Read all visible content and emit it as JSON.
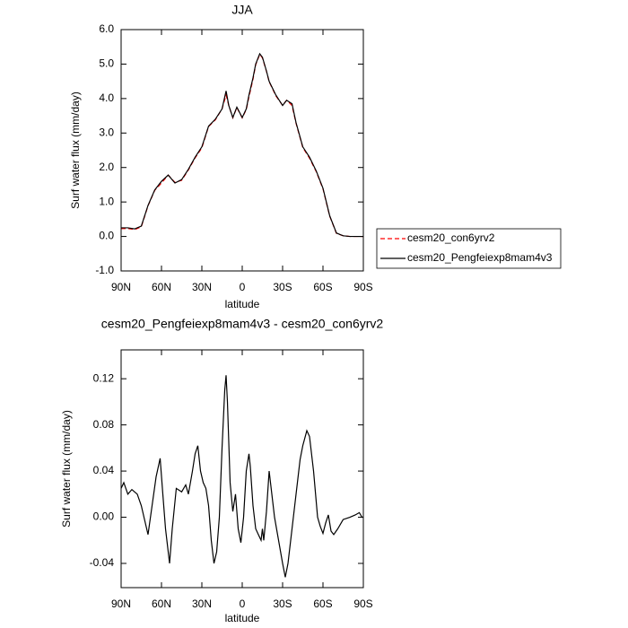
{
  "chart_data": [
    {
      "type": "line",
      "title": "JJA",
      "x_label": "latitude",
      "y_label": "Surf water flux (mm/day)",
      "legend": "right",
      "xlim": [
        90,
        -90
      ],
      "xticks": [
        {
          "value": 90,
          "label": "90N"
        },
        {
          "value": 60,
          "label": "60N"
        },
        {
          "value": 30,
          "label": "30N"
        },
        0,
        {
          "value": -30,
          "label": "30S"
        },
        {
          "value": -60,
          "label": "60S"
        },
        {
          "value": -90,
          "label": "90S"
        }
      ],
      "ylim": [
        -1,
        6
      ],
      "yticks": [
        {
          "value": -1,
          "label": "-1.0"
        },
        {
          "value": 0,
          "label": "0.0"
        },
        {
          "value": 1,
          "label": "1.0"
        },
        {
          "value": 2,
          "label": "2.0"
        },
        {
          "value": 3,
          "label": "3.0"
        },
        {
          "value": 4,
          "label": "4.0"
        },
        {
          "value": 5,
          "label": "5.0"
        },
        {
          "value": 6,
          "label": "6.0"
        }
      ],
      "x": [
        90,
        85,
        80,
        75,
        70,
        65,
        60,
        55,
        50,
        45,
        40,
        35,
        30,
        25,
        20,
        15,
        12,
        10,
        7,
        4,
        0,
        -3,
        -5,
        -8,
        -10,
        -13,
        -15,
        -18,
        -20,
        -25,
        -30,
        -33,
        -37,
        -40,
        -45,
        -50,
        -55,
        -60,
        -65,
        -70,
        -75,
        -80,
        -85,
        -90
      ],
      "series": [
        {
          "name": "cesm20_con6yrv2",
          "color": "#ff0000",
          "dashed": true,
          "values": [
            0.23,
            0.23,
            0.2,
            0.28,
            0.89,
            1.34,
            1.55,
            1.78,
            1.57,
            1.63,
            1.93,
            2.28,
            2.57,
            3.19,
            3.38,
            3.7,
            4.1,
            3.8,
            3.44,
            3.74,
            3.44,
            3.68,
            4.05,
            4.56,
            4.98,
            5.28,
            5.18,
            4.79,
            4.49,
            4.08,
            3.8,
            3.95,
            3.8,
            3.28,
            2.58,
            2.27,
            1.88,
            1.38,
            0.59,
            0.09,
            0.02,
            0.0,
            0.0,
            0.0
          ]
        },
        {
          "name": "cesm20_Pengfeiexp8mam4v3",
          "color": "#000000",
          "dashed": false,
          "values": [
            0.25,
            0.25,
            0.22,
            0.3,
            0.9,
            1.35,
            1.6,
            1.78,
            1.55,
            1.65,
            1.95,
            2.3,
            2.6,
            3.2,
            3.4,
            3.7,
            4.22,
            3.8,
            3.45,
            3.75,
            3.45,
            3.7,
            4.1,
            4.6,
            5.0,
            5.3,
            5.2,
            4.8,
            4.5,
            4.1,
            3.8,
            3.95,
            3.85,
            3.3,
            2.6,
            2.3,
            1.9,
            1.4,
            0.6,
            0.1,
            0.02,
            0.0,
            0.0,
            0.0
          ]
        }
      ]
    },
    {
      "type": "line",
      "title": "cesm20_Pengfeiexp8mam4v3 - cesm20_con6yrv2",
      "x_label": "latitude",
      "y_label": "Surf water flux (mm/day)",
      "xlim": [
        90,
        -90
      ],
      "xticks": [
        {
          "value": 90,
          "label": "90N"
        },
        {
          "value": 60,
          "label": "60N"
        },
        {
          "value": 30,
          "label": "30N"
        },
        0,
        {
          "value": -30,
          "label": "30S"
        },
        {
          "value": -60,
          "label": "60S"
        },
        {
          "value": -90,
          "label": "90S"
        }
      ],
      "ylim": [
        -0.061,
        0.145
      ],
      "yticks": [
        -0.04,
        {
          "value": 0,
          "label": "0.00"
        },
        0.04,
        0.08,
        0.12
      ],
      "x": [
        90,
        88,
        85,
        82,
        78,
        75,
        72,
        70,
        67,
        64,
        61,
        59,
        57,
        54,
        52,
        49,
        45,
        42,
        40,
        37,
        35,
        33,
        31,
        29,
        27,
        25,
        23,
        21,
        19,
        17,
        15,
        13,
        12,
        11,
        9,
        7,
        5,
        3,
        1,
        -1,
        -3,
        -5,
        -6,
        -8,
        -10,
        -12,
        -14,
        -15,
        -16,
        -18,
        -20,
        -22,
        -24,
        -27,
        -30,
        -32,
        -34,
        -37,
        -40,
        -43,
        -45,
        -48,
        -50,
        -53,
        -56,
        -58,
        -60,
        -62,
        -64,
        -66,
        -68,
        -71,
        -75,
        -80,
        -84,
        -87,
        -89,
        -90
      ],
      "series": [
        {
          "name": null,
          "color": "#000000",
          "dashed": false,
          "values": [
            0.025,
            0.03,
            0.02,
            0.024,
            0.02,
            0.01,
            -0.005,
            -0.015,
            0.01,
            0.035,
            0.051,
            0.02,
            -0.01,
            -0.04,
            -0.01,
            0.025,
            0.022,
            0.028,
            0.02,
            0.04,
            0.055,
            0.062,
            0.04,
            0.03,
            0.025,
            0.01,
            -0.02,
            -0.04,
            -0.03,
            0,
            0.06,
            0.11,
            0.123,
            0.1,
            0.03,
            0.005,
            0.02,
            -0.01,
            -0.022,
            0,
            0.04,
            0.055,
            0.044,
            0.01,
            -0.01,
            -0.015,
            -0.02,
            -0.01,
            -0.02,
            0.005,
            0.04,
            0.02,
            0,
            -0.02,
            -0.04,
            -0.052,
            -0.04,
            -0.01,
            0.02,
            0.05,
            0.062,
            0.075,
            0.07,
            0.04,
            0.0,
            -0.008,
            -0.014,
            -0.005,
            0.002,
            -0.012,
            -0.015,
            -0.01,
            -0.002,
            0.0,
            0.002,
            0.004,
            0.0,
            0.0
          ]
        }
      ]
    }
  ]
}
